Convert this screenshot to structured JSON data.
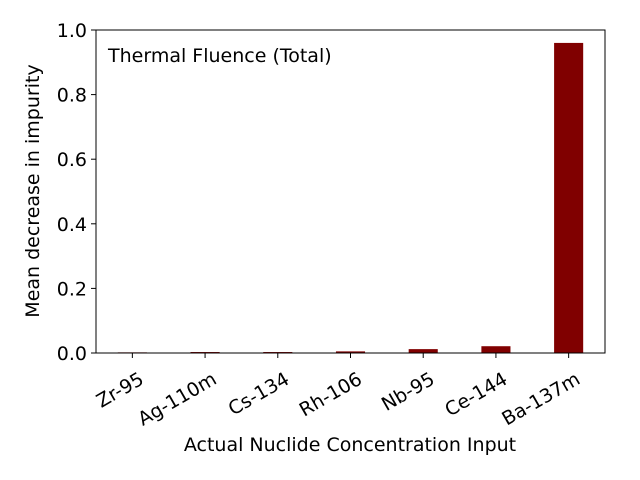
{
  "chart_data": {
    "type": "bar",
    "annotation": "Thermal Fluence (Total)",
    "xlabel": "Actual Nuclide Concentration Input",
    "ylabel": "Mean decrease in impurity",
    "categories": [
      "Zr-95",
      "Ag-110m",
      "Cs-134",
      "Rh-106",
      "Nb-95",
      "Ce-144",
      "Ba-137m"
    ],
    "values": [
      0.002,
      0.003,
      0.003,
      0.005,
      0.012,
      0.021,
      0.96
    ],
    "ylim": [
      0,
      1.0
    ],
    "yticks": [
      "0.0",
      "0.2",
      "0.4",
      "0.6",
      "0.8",
      "1.0"
    ],
    "bar_color": "#800000",
    "grid": false,
    "legend": "none"
  }
}
